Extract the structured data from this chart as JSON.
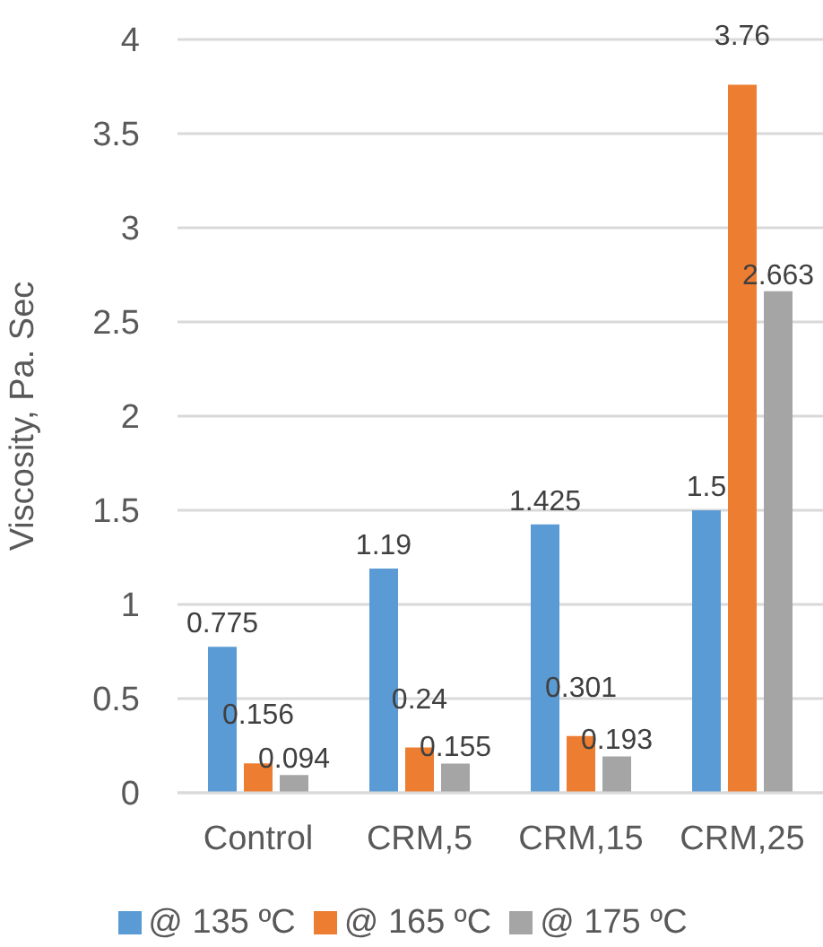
{
  "chart_data": {
    "type": "bar",
    "ylabel": "Viscosity, Pa. Sec",
    "categories": [
      "Control",
      "CRM,5",
      "CRM,15",
      "CRM,25"
    ],
    "series": [
      {
        "name": "@ 135 ºC",
        "color": "#5b9bd5",
        "values": [
          0.775,
          1.19,
          1.425,
          1.5
        ]
      },
      {
        "name": "@ 165 ºC",
        "color": "#ed7d31",
        "values": [
          0.156,
          0.24,
          0.301,
          3.76
        ]
      },
      {
        "name": "@ 175 ºC",
        "color": "#a5a5a5",
        "values": [
          0.094,
          0.155,
          0.193,
          2.663
        ]
      }
    ],
    "ylim": [
      0,
      4
    ],
    "yticks": [
      0,
      0.5,
      1,
      1.5,
      2,
      2.5,
      3,
      3.5,
      4
    ],
    "grid": "y",
    "legend": "bottom",
    "data_labels": true
  }
}
